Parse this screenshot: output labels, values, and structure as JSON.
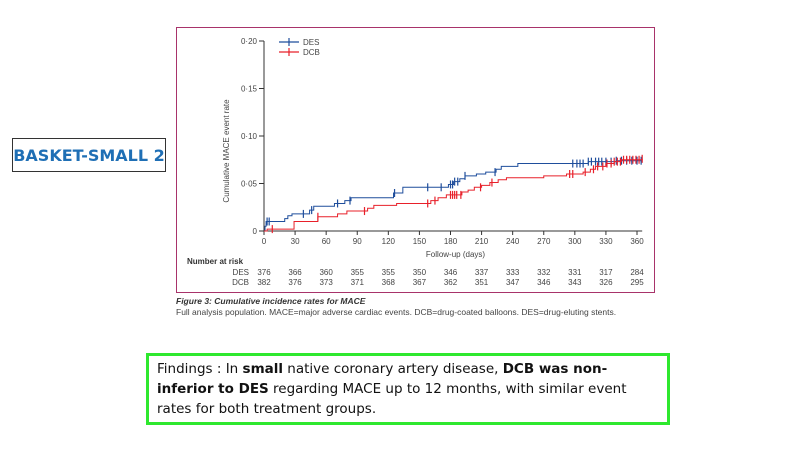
{
  "slide_label": "BASKET-SMALL 2",
  "caption": {
    "title": "Figure 3: Cumulative incidence rates for MACE",
    "text": "Full analysis population. MACE=major adverse cardiac events. DCB=drug-coated balloons. DES=drug-eluting stents."
  },
  "findings": {
    "prefix": "Findings : In ",
    "bold1": "small",
    "mid1": " native coronary artery disease, ",
    "bold2": "DCB was non-inferior to DES",
    "suffix": " regarding MACE up to 12 months, with similar event rates for both treatment groups."
  },
  "chart_data": {
    "type": "line",
    "title": "",
    "xlabel": "Follow-up (days)",
    "ylabel": "Cumulative MACE event rate",
    "xlim": [
      0,
      365
    ],
    "ylim": [
      0,
      0.2
    ],
    "xticks": [
      0,
      30,
      60,
      90,
      120,
      150,
      180,
      210,
      240,
      270,
      300,
      330,
      360
    ],
    "yticks": [
      0,
      0.05,
      0.1,
      0.15,
      0.2
    ],
    "ytick_labels": [
      "0",
      "0·05",
      "0·10",
      "0·15",
      "0·20"
    ],
    "legend_position": "top-left",
    "series": [
      {
        "name": "DES",
        "color": "#1f4e9c",
        "steps": [
          [
            0,
            0
          ],
          [
            1,
            0.005
          ],
          [
            2,
            0.01
          ],
          [
            20,
            0.013
          ],
          [
            23,
            0.016
          ],
          [
            27,
            0.018
          ],
          [
            44,
            0.022
          ],
          [
            48,
            0.026
          ],
          [
            68,
            0.029
          ],
          [
            78,
            0.032
          ],
          [
            84,
            0.035
          ],
          [
            125,
            0.04
          ],
          [
            134,
            0.046
          ],
          [
            178,
            0.049
          ],
          [
            183,
            0.052
          ],
          [
            189,
            0.055
          ],
          [
            194,
            0.058
          ],
          [
            205,
            0.06
          ],
          [
            214,
            0.062
          ],
          [
            224,
            0.065
          ],
          [
            229,
            0.068
          ],
          [
            245,
            0.071
          ],
          [
            313,
            0.073
          ],
          [
            340,
            0.074
          ],
          [
            365,
            0.074
          ]
        ],
        "censored": [
          3,
          5,
          38,
          46,
          71,
          83,
          126,
          158,
          171,
          180,
          182,
          184,
          187,
          194,
          223,
          298,
          302,
          305,
          308,
          313,
          316,
          320,
          323,
          326,
          330,
          335,
          340,
          345,
          350,
          355,
          360,
          364
        ]
      },
      {
        "name": "DCB",
        "color": "#e8202a",
        "steps": [
          [
            0,
            0
          ],
          [
            3,
            0.002
          ],
          [
            29,
            0.01
          ],
          [
            52,
            0.015
          ],
          [
            71,
            0.018
          ],
          [
            80,
            0.021
          ],
          [
            100,
            0.024
          ],
          [
            106,
            0.027
          ],
          [
            128,
            0.029
          ],
          [
            161,
            0.032
          ],
          [
            168,
            0.035
          ],
          [
            176,
            0.038
          ],
          [
            191,
            0.041
          ],
          [
            197,
            0.043
          ],
          [
            203,
            0.046
          ],
          [
            210,
            0.048
          ],
          [
            218,
            0.051
          ],
          [
            226,
            0.054
          ],
          [
            234,
            0.056
          ],
          [
            270,
            0.058
          ],
          [
            292,
            0.06
          ],
          [
            308,
            0.062
          ],
          [
            315,
            0.065
          ],
          [
            320,
            0.068
          ],
          [
            330,
            0.071
          ],
          [
            338,
            0.073
          ],
          [
            345,
            0.075
          ],
          [
            365,
            0.076
          ]
        ],
        "censored": [
          8,
          52,
          97,
          158,
          165,
          180,
          182,
          184,
          186,
          190,
          209,
          220,
          295,
          298,
          310,
          318,
          322,
          327,
          331,
          335,
          338,
          341,
          344,
          347,
          350,
          353,
          356,
          359,
          362,
          365
        ]
      }
    ],
    "risk_table": {
      "title": "Number at risk",
      "times": [
        0,
        30,
        60,
        90,
        120,
        150,
        180,
        210,
        240,
        270,
        300,
        330,
        360
      ],
      "rows": [
        {
          "name": "DES",
          "values": [
            376,
            366,
            360,
            355,
            355,
            350,
            346,
            337,
            333,
            332,
            331,
            317,
            284
          ]
        },
        {
          "name": "DCB",
          "values": [
            382,
            376,
            373,
            371,
            368,
            367,
            362,
            351,
            347,
            346,
            343,
            326,
            295
          ]
        }
      ]
    }
  }
}
